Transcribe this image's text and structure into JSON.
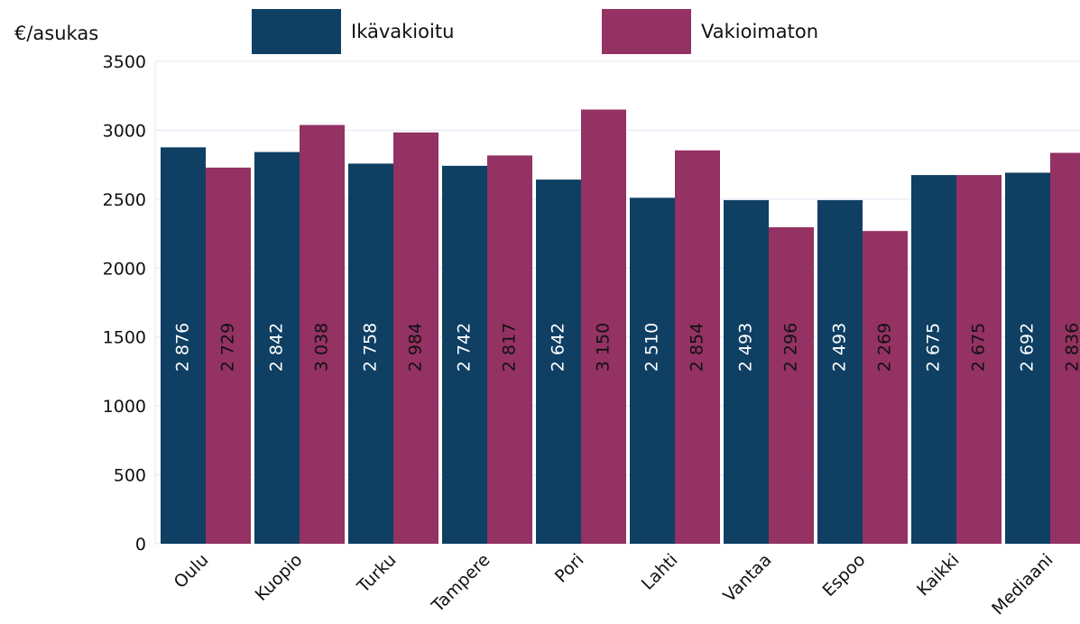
{
  "chart_data": {
    "type": "bar",
    "y_label": "€/asukas",
    "categories": [
      "Oulu",
      "Kuopio",
      "Turku",
      "Tampere",
      "Pori",
      "Lahti",
      "Vantaa",
      "Espoo",
      "Kaikki",
      "Mediaani"
    ],
    "series": [
      {
        "name": "Ikävakioitu",
        "color": "#0f3f63",
        "values": [
          2876,
          2842,
          2758,
          2742,
          2642,
          2510,
          2493,
          2493,
          2675,
          2692
        ],
        "value_labels": [
          "2 876",
          "2 842",
          "2 758",
          "2 742",
          "2 642",
          "2 510",
          "2 493",
          "2 493",
          "2 675",
          "2 692"
        ]
      },
      {
        "name": "Vakioimaton",
        "color": "#933263",
        "values": [
          2729,
          3038,
          2984,
          2817,
          3150,
          2854,
          2296,
          2269,
          2675,
          2836
        ],
        "value_labels": [
          "2 729",
          "3 038",
          "2 984",
          "2 817",
          "3 150",
          "2 854",
          "2 296",
          "2 269",
          "2 675",
          "2 836"
        ]
      }
    ],
    "ylim": [
      0,
      3500
    ],
    "yticks": [
      0,
      500,
      1000,
      1500,
      2000,
      2500,
      3000,
      3500
    ],
    "grid": true,
    "legend": "top"
  }
}
